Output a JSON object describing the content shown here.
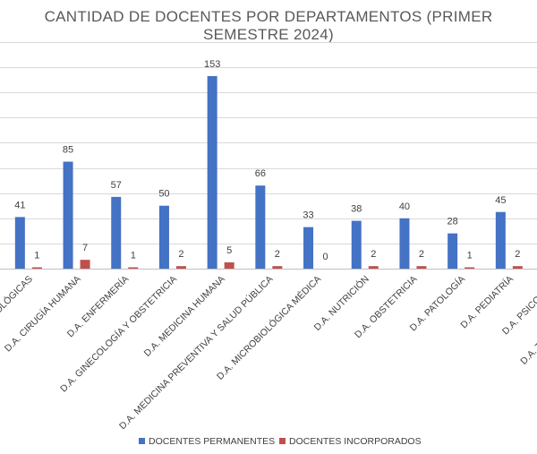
{
  "chart_data": {
    "type": "bar",
    "title": "CANTIDAD DE DOCENTES POR DEPARTAMENTOS (PRIMER SEMESTRE 2024)",
    "xlabel": "",
    "ylabel": "",
    "categories": [
      "D.A. CIENCIAS MORFOLÓGICAS",
      "D.A. CIRUGÍA HUMANA",
      "D.A. ENFERMERÍA",
      "D.A. GINECOLOGÍA Y OBSTETRICIA",
      "D.A. MEDICINA HUMANA",
      "D.A. MEDICINA PREVENTIVA Y SALUD PÚBLICA",
      "D.A. MICROBIOLÓGICA MÉDICA",
      "D.A. NUTRICIÓN",
      "D.A. OBSTETRICIA",
      "D.A. PATOLOGÍA",
      "D.A. PEDIATRÍA",
      "D.A. PSICOLOGÍA",
      "D.A. TECNOLOGÍA MÉDICA"
    ],
    "series": [
      {
        "name": "DOCENTES PERMANENTES",
        "color": "#4472c4",
        "values": [
          41,
          85,
          57,
          50,
          153,
          66,
          33,
          38,
          40,
          28,
          45,
          null,
          null
        ]
      },
      {
        "name": "DOCENTES INCORPORADOS",
        "color": "#c0504d",
        "values": [
          1,
          7,
          1,
          2,
          5,
          2,
          0,
          2,
          2,
          1,
          2,
          null,
          null
        ]
      }
    ],
    "ylim": [
      0,
      180
    ],
    "ytick_step": 20,
    "grid": true,
    "legend": "bottom"
  }
}
